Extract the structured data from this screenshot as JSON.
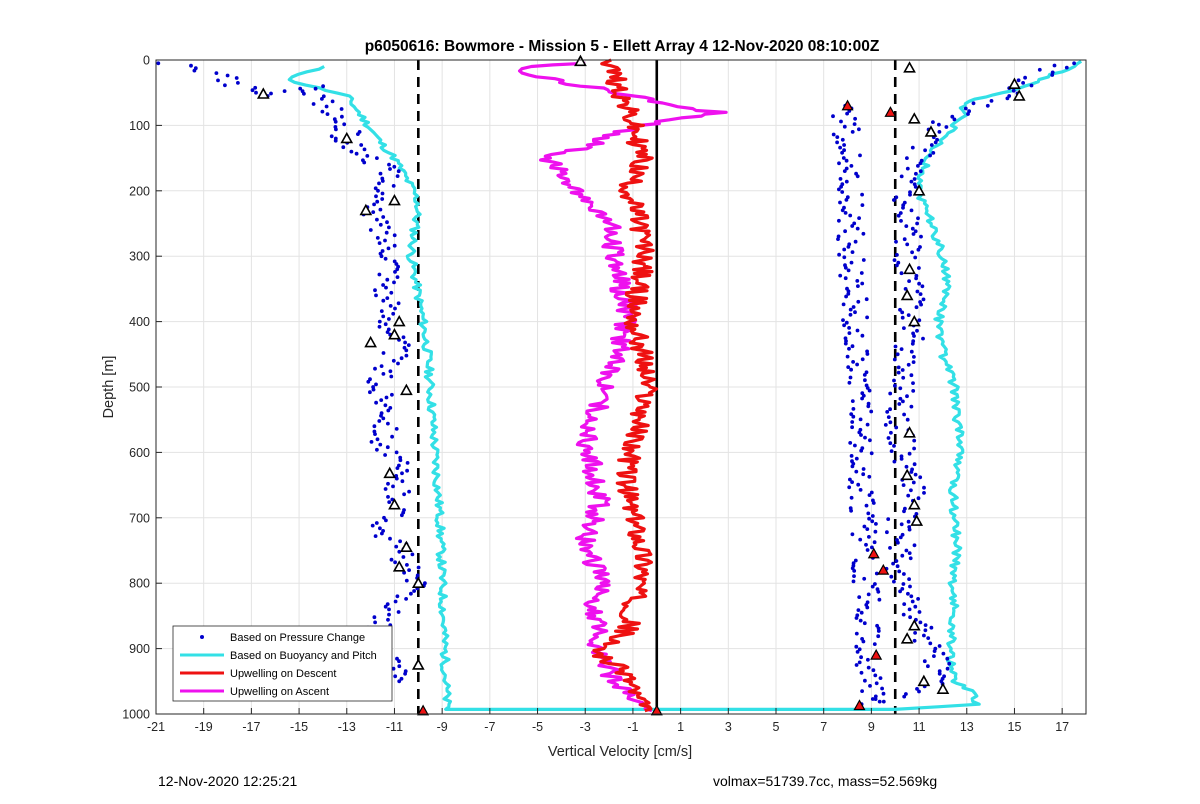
{
  "footer": {
    "left_text": "12-Nov-2020 12:25:21",
    "right_text": "volmax=51739.7cc, mass=52.569kg"
  },
  "chart_data": {
    "type": "scatter",
    "title": "p6050616: Bowmore - Mission 5 - Ellett Array 4 12-Nov-2020 08:10:00Z",
    "xlabel": "Vertical Velocity [cm/s]",
    "ylabel": "Depth [m]",
    "xlim": [
      -21,
      18
    ],
    "ylim": [
      1000,
      0
    ],
    "y_reversed": true,
    "xticks": [
      -21,
      -19,
      -17,
      -15,
      -13,
      -11,
      -9,
      -7,
      -5,
      -3,
      -1,
      1,
      3,
      5,
      7,
      9,
      11,
      13,
      15,
      17
    ],
    "yticks": [
      0,
      100,
      200,
      300,
      400,
      500,
      600,
      700,
      800,
      900,
      1000
    ],
    "grid": true,
    "legend_position": "bottom-left",
    "colors": {
      "pressure": "#0000cc",
      "buoyancy": "#33e0e6",
      "descent": "#ee1111",
      "ascent": "#ee11ee",
      "reference": "#000000",
      "grid": "#e3e3e3"
    },
    "reference_lines": [
      {
        "style": "dashed",
        "x": -10
      },
      {
        "style": "dashed",
        "x": 10
      },
      {
        "style": "solid",
        "x": 0
      }
    ],
    "series": [
      {
        "name": "Based on Pressure Change",
        "style": "markers",
        "branches": [
          {
            "x": [
              -20.5,
              -18.5,
              -17.0,
              -16.5,
              -14.5,
              -13.0,
              -13.2,
              -12.8,
              -12.5,
              -12.0,
              -11.6,
              -11.3,
              -11.5,
              -11.2,
              -12.2,
              -11.8,
              -11.5,
              -11.3,
              -11.0,
              -11.0,
              -11.2,
              -11.4,
              -11.3,
              -11.2,
              -11.0,
              -10.8,
              -11.2,
              -11.6,
              -11.8,
              -11.4,
              -11.1,
              -11.3,
              -11.5,
              -11.3,
              -10.9,
              -11.0,
              -10.9,
              -10.7,
              -11.2,
              -11.5,
              -11.0,
              -10.6,
              -10.5,
              -10.2,
              -10.6,
              -11.0,
              -11.5,
              -12.0,
              -11.5,
              -10.8
            ],
            "y": [
              5,
              20,
              50,
              55,
              40,
              110,
              120,
              130,
              140,
              150,
              160,
              170,
              185,
              200,
              225,
              240,
              260,
              280,
              300,
              320,
              340,
              360,
              380,
              400,
              420,
              440,
              460,
              480,
              500,
              520,
              540,
              560,
              580,
              600,
              620,
              640,
              660,
              680,
              700,
              720,
              740,
              760,
              780,
              800,
              820,
              840,
              860,
              880,
              900,
              950
            ]
          },
          {
            "x": [
              17.5,
              16.5,
              15.5,
              14.5,
              13.5,
              12.0,
              11.5,
              11.2,
              11.0,
              10.8,
              10.5,
              10.5,
              10.4,
              10.5,
              10.6,
              10.5,
              10.5,
              10.7,
              10.6,
              10.8,
              10.7,
              10.8,
              10.6,
              10.5,
              10.4,
              10.5,
              10.3,
              10.2,
              10.1,
              10.2,
              10.3,
              10.4,
              10.6,
              10.8,
              10.9,
              10.5,
              10.0,
              10.2,
              10.3,
              10.2,
              10.0,
              10.5,
              10.9,
              11.5,
              12.0,
              9.0,
              7.9
            ],
            "y": [
              5,
              15,
              35,
              55,
              70,
              95,
              110,
              130,
              150,
              170,
              190,
              210,
              230,
              250,
              270,
              290,
              310,
              330,
              350,
              370,
              390,
              410,
              430,
              450,
              470,
              490,
              510,
              530,
              550,
              570,
              590,
              610,
              630,
              650,
              670,
              690,
              710,
              730,
              750,
              770,
              790,
              820,
              860,
              900,
              950,
              985,
              70
            ]
          }
        ]
      },
      {
        "name": "Based on Buoyancy and Pitch",
        "style": "line",
        "x": [
          -14.0,
          -15.5,
          -13.0,
          -12.5,
          -11.5,
          -11.0,
          -10.2,
          -10.0,
          -10.3,
          -9.8,
          -9.6,
          -9.5,
          -9.4,
          -9.3,
          -9.2,
          -9.1,
          -9.0,
          -8.8,
          10.0,
          13.5,
          13.0,
          12.5,
          12.3,
          12.5,
          12.4,
          12.6,
          12.5,
          12.4,
          12.8,
          12.6,
          12.5,
          12.0,
          11.8,
          12.2,
          12.0,
          11.5,
          11.0,
          11.3,
          12.5,
          13.0,
          12.8,
          13.2,
          14.5,
          15.5,
          16.0,
          17.5,
          17.8
        ],
        "y": [
          10,
          30,
          55,
          80,
          130,
          150,
          200,
          220,
          300,
          400,
          450,
          500,
          550,
          600,
          650,
          700,
          800,
          993,
          993,
          985,
          960,
          950,
          900,
          850,
          800,
          750,
          700,
          650,
          600,
          550,
          500,
          450,
          400,
          350,
          300,
          250,
          200,
          150,
          100,
          80,
          70,
          60,
          50,
          40,
          30,
          10,
          2
        ]
      },
      {
        "name": "Upwelling on Descent",
        "style": "line",
        "x": [
          -2.0,
          -1.5,
          -1.0,
          -0.6,
          -1.2,
          -0.7,
          -0.5,
          -0.8,
          -1.0,
          -0.6,
          -0.4,
          -0.7,
          -1.1,
          -1.3,
          -1.0,
          -0.8,
          -0.6,
          -0.5,
          -0.7,
          -0.9,
          -1.1,
          -1.2,
          -1.5,
          -2.0,
          -2.5,
          -2.0,
          -1.2,
          -1.0,
          -0.8,
          -0.5
        ],
        "y": [
          0,
          50,
          100,
          150,
          200,
          250,
          300,
          350,
          400,
          450,
          500,
          550,
          600,
          650,
          700,
          720,
          750,
          780,
          800,
          820,
          850,
          870,
          880,
          890,
          900,
          920,
          940,
          960,
          980,
          995
        ]
      },
      {
        "name": "Upwelling on Ascent",
        "style": "line",
        "x": [
          -0.5,
          -1.0,
          -1.8,
          -2.2,
          -2.6,
          -2.4,
          -2.8,
          -2.5,
          -2.2,
          -2.4,
          -2.8,
          -3.1,
          -2.9,
          -2.6,
          -2.4,
          -2.5,
          -2.7,
          -2.8,
          -3.0,
          -2.6,
          -2.2,
          -1.8,
          -1.4,
          -1.2,
          -1.5,
          -1.8,
          -2.0,
          -3.5,
          -4.5,
          -2.8,
          -1.5,
          -0.5,
          2.5,
          -0.5,
          -3.0,
          -6.0,
          -5.0,
          -3.0
        ],
        "y": [
          995,
          970,
          950,
          920,
          900,
          870,
          850,
          820,
          800,
          780,
          760,
          740,
          720,
          700,
          680,
          650,
          620,
          600,
          570,
          540,
          500,
          460,
          420,
          380,
          350,
          300,
          250,
          200,
          150,
          130,
          110,
          100,
          80,
          60,
          40,
          20,
          10,
          5
        ]
      }
    ],
    "triangle_markers": {
      "outlined": [
        {
          "x": -16.5,
          "y": 52
        },
        {
          "x": -13.0,
          "y": 120
        },
        {
          "x": -12.2,
          "y": 230
        },
        {
          "x": -11.0,
          "y": 215
        },
        {
          "x": -12.0,
          "y": 432
        },
        {
          "x": -11.0,
          "y": 420
        },
        {
          "x": -10.8,
          "y": 400
        },
        {
          "x": -10.5,
          "y": 505
        },
        {
          "x": -11.2,
          "y": 632
        },
        {
          "x": -11.0,
          "y": 680
        },
        {
          "x": -10.5,
          "y": 745
        },
        {
          "x": -10.8,
          "y": 775
        },
        {
          "x": -10.0,
          "y": 800
        },
        {
          "x": -12.0,
          "y": 875
        },
        {
          "x": -10.0,
          "y": 925
        },
        {
          "x": -3.2,
          "y": 2
        },
        {
          "x": 10.6,
          "y": 12
        },
        {
          "x": 15.0,
          "y": 37
        },
        {
          "x": 15.2,
          "y": 55
        },
        {
          "x": 10.8,
          "y": 90
        },
        {
          "x": 11.5,
          "y": 110
        },
        {
          "x": 11.0,
          "y": 200
        },
        {
          "x": 10.6,
          "y": 320
        },
        {
          "x": 10.5,
          "y": 360
        },
        {
          "x": 10.8,
          "y": 400
        },
        {
          "x": 10.6,
          "y": 570
        },
        {
          "x": 10.5,
          "y": 635
        },
        {
          "x": 10.8,
          "y": 680
        },
        {
          "x": 10.9,
          "y": 705
        },
        {
          "x": 10.8,
          "y": 865
        },
        {
          "x": 10.5,
          "y": 885
        },
        {
          "x": 11.2,
          "y": 950
        },
        {
          "x": 12.0,
          "y": 962
        }
      ],
      "filled": [
        {
          "x": -9.8,
          "y": 995
        },
        {
          "x": 0.0,
          "y": 995
        },
        {
          "x": 8.0,
          "y": 70
        },
        {
          "x": 9.1,
          "y": 755
        },
        {
          "x": 9.5,
          "y": 780
        },
        {
          "x": 9.2,
          "y": 910
        },
        {
          "x": 9.8,
          "y": 80
        },
        {
          "x": 8.5,
          "y": 987
        }
      ]
    }
  }
}
